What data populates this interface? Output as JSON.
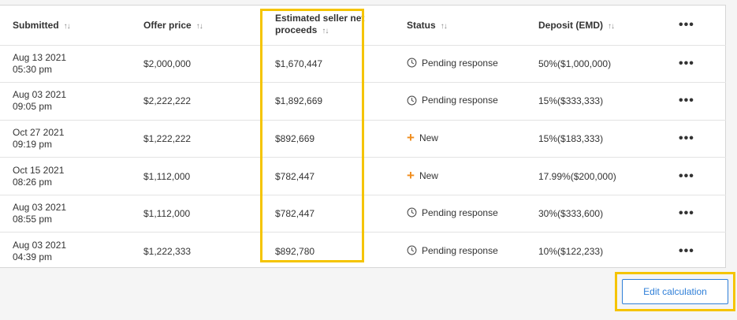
{
  "table": {
    "headers": {
      "submitted": "Submitted",
      "offer_price": "Offer price",
      "est_net_line1": "Estimated seller net",
      "est_net_line2": "proceeds",
      "status": "Status",
      "deposit": "Deposit (EMD)",
      "sort_glyph": "↑↓",
      "more_glyph": "•••"
    },
    "rows": [
      {
        "date": "Aug 13 2021",
        "time": "05:30 pm",
        "offer": "$2,000,000",
        "net": "$1,670,447",
        "status": "Pending response",
        "status_icon": "clock-icon",
        "deposit": "50%($1,000,000)"
      },
      {
        "date": "Aug 03 2021",
        "time": "09:05 pm",
        "offer": "$2,222,222",
        "net": "$1,892,669",
        "status": "Pending response",
        "status_icon": "clock-icon",
        "deposit": "15%($333,333)"
      },
      {
        "date": "Oct 27 2021",
        "time": "09:19 pm",
        "offer": "$1,222,222",
        "net": "$892,669",
        "status": "New",
        "status_icon": "plus-icon",
        "deposit": "15%($183,333)"
      },
      {
        "date": "Oct 15 2021",
        "time": "08:26 pm",
        "offer": "$1,112,000",
        "net": "$782,447",
        "status": "New",
        "status_icon": "plus-icon",
        "deposit": "17.99%($200,000)"
      },
      {
        "date": "Aug 03 2021",
        "time": "08:55 pm",
        "offer": "$1,112,000",
        "net": "$782,447",
        "status": "Pending response",
        "status_icon": "clock-icon",
        "deposit": "30%($333,600)"
      },
      {
        "date": "Aug 03 2021",
        "time": "04:39 pm",
        "offer": "$1,222,333",
        "net": "$892,780",
        "status": "Pending response",
        "status_icon": "clock-icon",
        "deposit": "10%($122,233)"
      }
    ]
  },
  "footer": {
    "edit_calculation_label": "Edit calculation"
  },
  "colors": {
    "highlight": "#f5c400",
    "accent_blue": "#2f7fd8",
    "new_orange": "#f08c1c"
  }
}
